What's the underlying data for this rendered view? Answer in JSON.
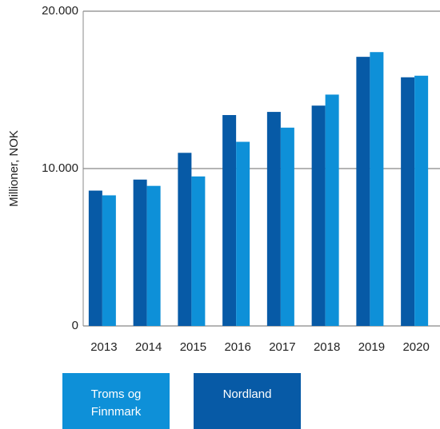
{
  "chart_data": {
    "type": "bar",
    "y_label": "Millioner, NOK",
    "categories": [
      "2013",
      "2014",
      "2015",
      "2016",
      "2017",
      "2018",
      "2019",
      "2020"
    ],
    "series": [
      {
        "name": "Nordland",
        "color": "#075aa6",
        "values": [
          8600,
          9300,
          11000,
          13400,
          13600,
          14000,
          17100,
          15800
        ]
      },
      {
        "name": "Troms og Finnmark",
        "color": "#0e90d8",
        "values": [
          8300,
          8900,
          9500,
          11700,
          12600,
          14700,
          17400,
          15900
        ]
      }
    ],
    "ylim": [
      0,
      20000
    ],
    "yticks": [
      0,
      {
        "value": 10000,
        "label": "10.000"
      },
      {
        "value": 20000,
        "label": "20.000"
      }
    ],
    "grid": true
  }
}
